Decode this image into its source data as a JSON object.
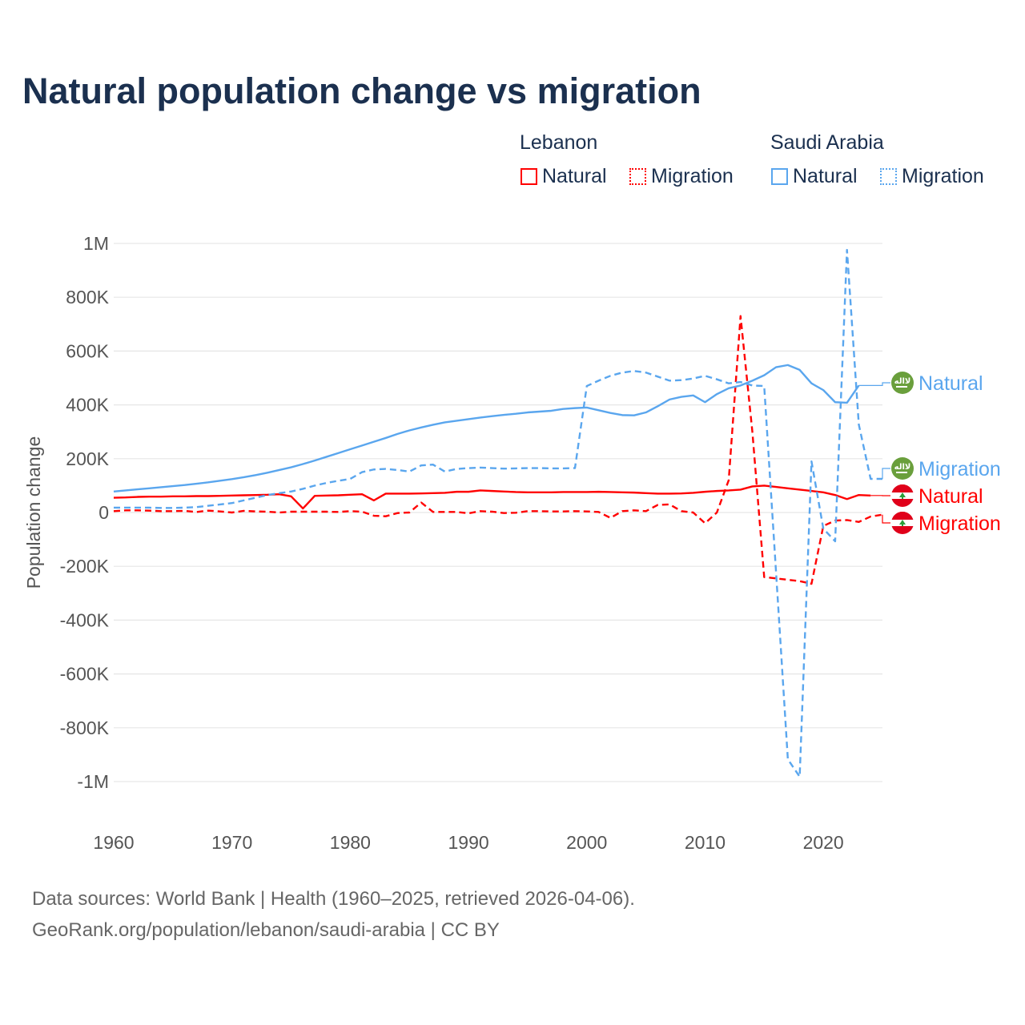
{
  "title": "Natural population change vs migration",
  "legend": {
    "groups": [
      {
        "name": "Lebanon",
        "color": "#ff0000",
        "items": [
          "Natural",
          "Migration"
        ]
      },
      {
        "name": "Saudi Arabia",
        "color": "#5aa6ee",
        "items": [
          "Natural",
          "Migration"
        ]
      }
    ]
  },
  "footer": {
    "line1": "Data sources: World Bank | Health (1960–2025, retrieved 2026-04-06).",
    "line2": "GeoRank.org/population/lebanon/saudi-arabia | CC BY"
  },
  "chart_data": {
    "type": "line",
    "title": "Natural population change vs migration",
    "xlabel": "",
    "ylabel": "Population change",
    "xlim": [
      1960,
      2025
    ],
    "ylim": [
      -1000000,
      1000000
    ],
    "x_ticks": [
      "1960",
      "1970",
      "1980",
      "1990",
      "2000",
      "2010",
      "2020"
    ],
    "y_ticks": [
      {
        "v": 1000000,
        "label": "1M"
      },
      {
        "v": 800000,
        "label": "800K"
      },
      {
        "v": 600000,
        "label": "600K"
      },
      {
        "v": 400000,
        "label": "400K"
      },
      {
        "v": 200000,
        "label": "200K"
      },
      {
        "v": 0,
        "label": "0"
      },
      {
        "v": -200000,
        "label": "-200K"
      },
      {
        "v": -400000,
        "label": "-400K"
      },
      {
        "v": -600000,
        "label": "-600K"
      },
      {
        "v": -800000,
        "label": "-800K"
      },
      {
        "v": -1000000,
        "label": "-1M"
      }
    ],
    "grid": true,
    "legend_position": "top-right",
    "series": [
      {
        "name": "Saudi Arabia Natural",
        "label": "Natural",
        "country": "saudi-arabia",
        "color": "#5aa6ee",
        "dashed": false,
        "start": 1960,
        "values_k": [
          78,
          82,
          86,
          90,
          94,
          98,
          102,
          107,
          112,
          118,
          124,
          131,
          139,
          148,
          158,
          168,
          180,
          193,
          207,
          221,
          235,
          249,
          263,
          277,
          292,
          305,
          316,
          326,
          335,
          341,
          347,
          353,
          358,
          363,
          367,
          372,
          375,
          378,
          385,
          388,
          390,
          380,
          370,
          362,
          361,
          372,
          395,
          420,
          430,
          435,
          410,
          440,
          462,
          472,
          490,
          510,
          540,
          548,
          530,
          480,
          455,
          410,
          408,
          472
        ]
      },
      {
        "name": "Saudi Arabia Migration",
        "label": "Migration",
        "country": "saudi-arabia",
        "color": "#5aa6ee",
        "dashed": true,
        "start": 1960,
        "values_k": [
          18,
          18,
          18,
          18,
          17,
          17,
          18,
          20,
          25,
          30,
          35,
          45,
          55,
          65,
          72,
          78,
          88,
          100,
          110,
          118,
          125,
          150,
          160,
          162,
          158,
          152,
          175,
          178,
          152,
          162,
          165,
          167,
          165,
          163,
          164,
          165,
          165,
          164,
          164,
          165,
          470,
          490,
          508,
          520,
          526,
          520,
          505,
          490,
          492,
          498,
          508,
          495,
          480,
          485,
          472,
          470,
          -220,
          -917,
          -982,
          190,
          -60,
          -107,
          976,
          327,
          125,
          125
        ]
      },
      {
        "name": "Lebanon Natural",
        "label": "Natural",
        "country": "lebanon",
        "color": "#ff0000",
        "dashed": false,
        "start": 1960,
        "values_k": [
          55,
          56,
          58,
          59,
          59,
          60,
          60,
          61,
          61,
          62,
          63,
          64,
          65,
          66,
          68,
          60,
          15,
          62,
          63,
          64,
          66,
          68,
          45,
          70,
          70,
          70,
          71,
          72,
          73,
          77,
          77,
          82,
          80,
          78,
          76,
          75,
          75,
          75,
          76,
          76,
          76,
          77,
          76,
          75,
          74,
          72,
          70,
          70,
          71,
          73,
          77,
          80,
          82,
          85,
          97,
          100,
          95,
          90,
          85,
          80,
          75,
          65,
          50,
          65,
          63
        ]
      },
      {
        "name": "Lebanon Migration",
        "label": "Migration",
        "country": "lebanon",
        "color": "#ff0000",
        "dashed": true,
        "start": 1960,
        "values_k": [
          5,
          8,
          8,
          7,
          5,
          5,
          6,
          2,
          7,
          4,
          0,
          6,
          4,
          3,
          0,
          3,
          3,
          3,
          3,
          2,
          5,
          3,
          -12,
          -14,
          -2,
          0,
          37,
          2,
          2,
          2,
          -3,
          5,
          3,
          -2,
          -1,
          5,
          5,
          4,
          4,
          5,
          4,
          2,
          -20,
          5,
          8,
          5,
          28,
          30,
          5,
          0,
          -40,
          0,
          120,
          730,
          300,
          -240,
          -245,
          -250,
          -255,
          -265,
          -50,
          -30,
          -28,
          -35,
          -15,
          -8
        ]
      }
    ]
  }
}
